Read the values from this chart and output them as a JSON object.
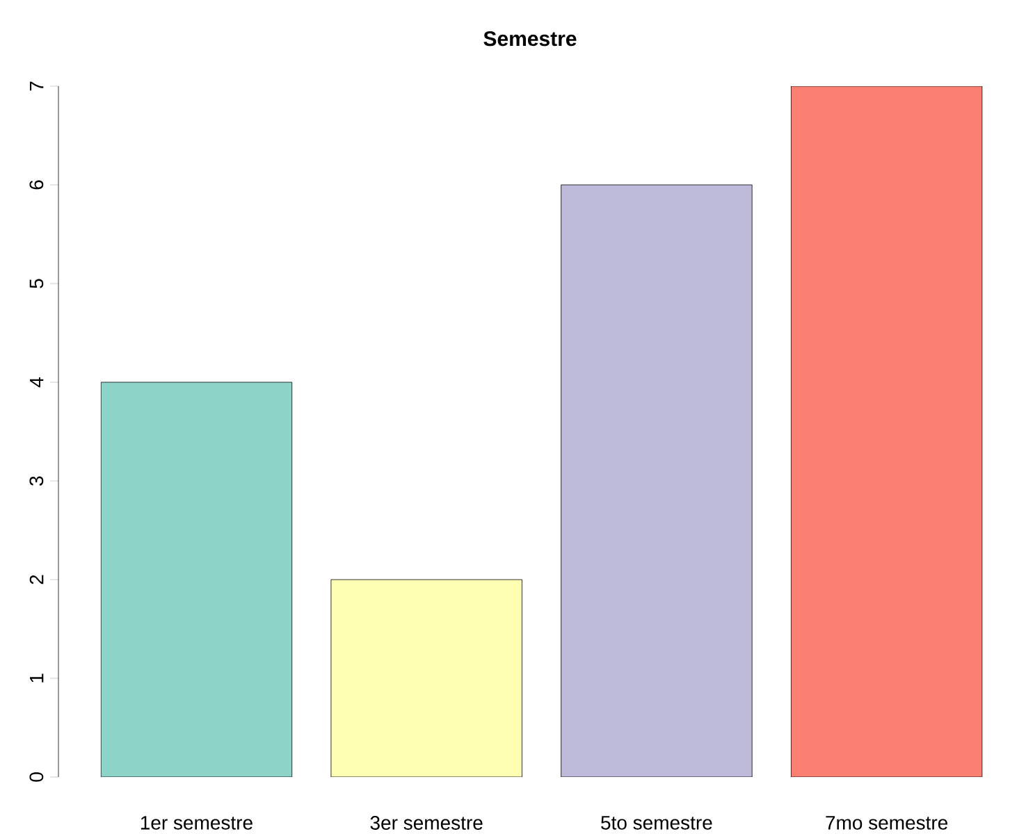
{
  "chart_data": {
    "type": "bar",
    "title": "Semestre",
    "categories": [
      "1er semestre",
      "3er semestre",
      "5to semestre",
      "7mo semestre"
    ],
    "values": [
      4,
      2,
      6,
      7
    ],
    "colors": [
      "#8dd3c7",
      "#ffffb3",
      "#bebada",
      "#fb8072"
    ],
    "ylim": [
      0,
      7
    ],
    "yticks": [
      0,
      1,
      2,
      3,
      4,
      5,
      6,
      7
    ],
    "grid": false
  }
}
